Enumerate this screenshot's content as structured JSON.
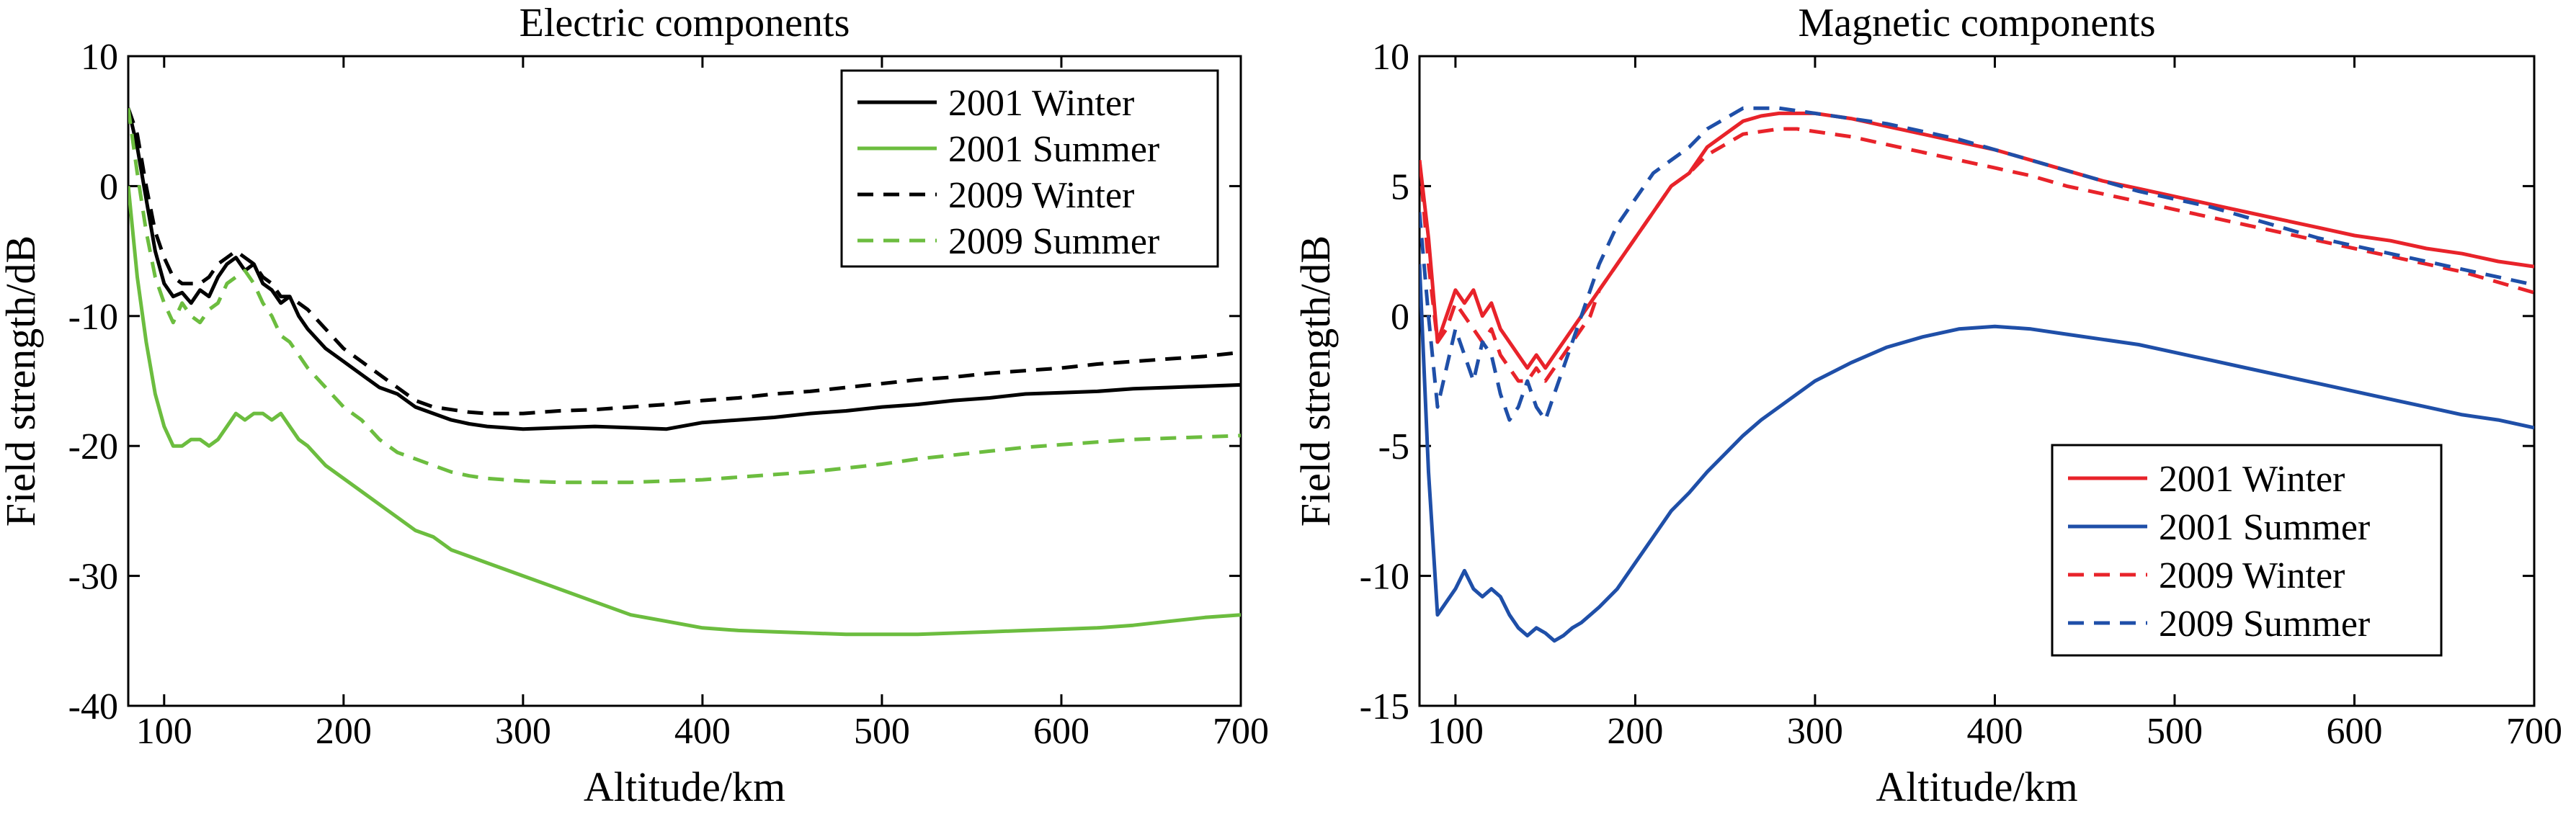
{
  "chart_data": [
    {
      "type": "line",
      "title": "Electric components",
      "xlabel": "Altitude/km",
      "ylabel": "Field strength/dB",
      "xlim": [
        80,
        700
      ],
      "ylim": [
        -40,
        10
      ],
      "xticks": [
        100,
        200,
        300,
        400,
        500,
        600,
        700
      ],
      "yticks": [
        10,
        0,
        -10,
        -20,
        -30,
        -40
      ],
      "legend_position": "top-right",
      "series": [
        {
          "name": "2001 Winter",
          "color": "#000000",
          "dash": "solid",
          "x": [
            80,
            85,
            90,
            95,
            100,
            105,
            110,
            115,
            120,
            125,
            130,
            135,
            140,
            145,
            150,
            155,
            160,
            165,
            170,
            175,
            180,
            190,
            200,
            210,
            220,
            230,
            240,
            250,
            260,
            270,
            280,
            290,
            300,
            320,
            340,
            360,
            380,
            400,
            420,
            440,
            460,
            480,
            500,
            520,
            540,
            560,
            580,
            600,
            620,
            640,
            660,
            680,
            700
          ],
          "y": [
            6,
            3,
            -1,
            -5,
            -7.5,
            -8.5,
            -8.2,
            -9,
            -8,
            -8.5,
            -7,
            -6,
            -5.5,
            -6.5,
            -6,
            -7.5,
            -8,
            -9,
            -8.5,
            -10,
            -11,
            -12.5,
            -13.5,
            -14.5,
            -15.5,
            -16,
            -17,
            -17.5,
            -18,
            -18.3,
            -18.5,
            -18.6,
            -18.7,
            -18.6,
            -18.5,
            -18.6,
            -18.7,
            -18.2,
            -18,
            -17.8,
            -17.5,
            -17.3,
            -17,
            -16.8,
            -16.5,
            -16.3,
            -16,
            -15.9,
            -15.8,
            -15.6,
            -15.5,
            -15.4,
            -15.3
          ]
        },
        {
          "name": "2001 Summer",
          "color": "#6cbd3f",
          "dash": "solid",
          "x": [
            80,
            85,
            90,
            95,
            100,
            105,
            110,
            115,
            120,
            125,
            130,
            135,
            140,
            145,
            150,
            155,
            160,
            165,
            170,
            175,
            180,
            190,
            200,
            210,
            220,
            230,
            240,
            250,
            260,
            270,
            280,
            290,
            300,
            320,
            340,
            360,
            380,
            400,
            420,
            440,
            460,
            480,
            500,
            520,
            540,
            560,
            580,
            600,
            620,
            640,
            660,
            680,
            700
          ],
          "y": [
            0,
            -7,
            -12,
            -16,
            -18.5,
            -20,
            -20,
            -19.5,
            -19.5,
            -20,
            -19.5,
            -18.5,
            -17.5,
            -18,
            -17.5,
            -17.5,
            -18,
            -17.5,
            -18.5,
            -19.5,
            -20,
            -21.5,
            -22.5,
            -23.5,
            -24.5,
            -25.5,
            -26.5,
            -27,
            -28,
            -28.5,
            -29,
            -29.5,
            -30,
            -31,
            -32,
            -33,
            -33.5,
            -34,
            -34.2,
            -34.3,
            -34.4,
            -34.5,
            -34.5,
            -34.5,
            -34.4,
            -34.3,
            -34.2,
            -34.1,
            -34,
            -33.8,
            -33.5,
            -33.2,
            -33
          ]
        },
        {
          "name": "2009 Winter",
          "color": "#000000",
          "dash": "dashed",
          "x": [
            80,
            85,
            90,
            95,
            100,
            105,
            110,
            115,
            120,
            125,
            130,
            135,
            140,
            145,
            150,
            155,
            160,
            165,
            170,
            175,
            180,
            190,
            200,
            210,
            220,
            230,
            240,
            250,
            260,
            270,
            280,
            290,
            300,
            320,
            340,
            360,
            380,
            400,
            420,
            440,
            460,
            480,
            500,
            520,
            540,
            560,
            580,
            600,
            620,
            640,
            660,
            680,
            700
          ],
          "y": [
            6,
            4,
            0,
            -3.5,
            -5.5,
            -7,
            -7.5,
            -7.5,
            -7.5,
            -7,
            -6,
            -5.5,
            -5,
            -5.5,
            -6,
            -7,
            -7.5,
            -8.5,
            -8.5,
            -9,
            -9.5,
            -11,
            -12.5,
            -13.5,
            -14.5,
            -15.5,
            -16.5,
            -17,
            -17.2,
            -17.4,
            -17.5,
            -17.5,
            -17.5,
            -17.3,
            -17.2,
            -17,
            -16.8,
            -16.5,
            -16.3,
            -16,
            -15.8,
            -15.5,
            -15.2,
            -14.9,
            -14.7,
            -14.4,
            -14.2,
            -14,
            -13.7,
            -13.5,
            -13.3,
            -13.1,
            -12.8
          ]
        },
        {
          "name": "2009 Summer",
          "color": "#6cbd3f",
          "dash": "dashed",
          "x": [
            80,
            85,
            90,
            95,
            100,
            105,
            110,
            115,
            120,
            125,
            130,
            135,
            140,
            145,
            150,
            155,
            160,
            165,
            170,
            175,
            180,
            190,
            200,
            210,
            220,
            230,
            240,
            250,
            260,
            270,
            280,
            290,
            300,
            320,
            340,
            360,
            380,
            400,
            420,
            440,
            460,
            480,
            500,
            520,
            540,
            560,
            580,
            600,
            620,
            640,
            660,
            680,
            700
          ],
          "y": [
            6,
            1,
            -3.5,
            -7,
            -9,
            -10.5,
            -9,
            -10,
            -10.5,
            -9.5,
            -9,
            -7.5,
            -7,
            -6.5,
            -7.5,
            -9,
            -10,
            -11.5,
            -12,
            -13,
            -14,
            -15.5,
            -17,
            -18,
            -19.5,
            -20.5,
            -21,
            -21.5,
            -22,
            -22.3,
            -22.5,
            -22.6,
            -22.7,
            -22.8,
            -22.8,
            -22.8,
            -22.7,
            -22.6,
            -22.4,
            -22.2,
            -22,
            -21.7,
            -21.4,
            -21,
            -20.7,
            -20.4,
            -20.1,
            -19.9,
            -19.7,
            -19.5,
            -19.4,
            -19.3,
            -19.2
          ]
        }
      ]
    },
    {
      "type": "line",
      "title": "Magnetic components",
      "xlabel": "Altitude/km",
      "ylabel": "Field strength/dB",
      "xlim": [
        80,
        700
      ],
      "ylim": [
        -15,
        10
      ],
      "xticks": [
        100,
        200,
        300,
        400,
        500,
        600,
        700
      ],
      "yticks": [
        10,
        5,
        0,
        -5,
        -10,
        -15
      ],
      "legend_position": "bottom-right",
      "series": [
        {
          "name": "2001 Winter",
          "color": "#e8232a",
          "dash": "solid",
          "x": [
            80,
            85,
            90,
            95,
            100,
            105,
            110,
            115,
            120,
            125,
            130,
            135,
            140,
            145,
            150,
            155,
            160,
            165,
            170,
            175,
            180,
            190,
            200,
            210,
            220,
            230,
            240,
            250,
            260,
            270,
            280,
            290,
            300,
            320,
            340,
            360,
            380,
            400,
            420,
            440,
            460,
            480,
            500,
            520,
            540,
            560,
            580,
            600,
            620,
            640,
            660,
            680,
            700
          ],
          "y": [
            6,
            3,
            -1,
            0,
            1,
            0.5,
            1,
            0,
            0.5,
            -0.5,
            -1,
            -1.5,
            -2,
            -1.5,
            -2,
            -1.5,
            -1,
            -0.5,
            0,
            0.5,
            1,
            2,
            3,
            4,
            5,
            5.5,
            6.5,
            7,
            7.5,
            7.7,
            7.8,
            7.8,
            7.8,
            7.6,
            7.3,
            7,
            6.7,
            6.4,
            6,
            5.6,
            5.2,
            4.9,
            4.6,
            4.3,
            4,
            3.7,
            3.4,
            3.1,
            2.9,
            2.6,
            2.4,
            2.1,
            1.9
          ]
        },
        {
          "name": "2001 Summer",
          "color": "#1f4fa8",
          "dash": "solid",
          "x": [
            80,
            85,
            90,
            95,
            100,
            105,
            110,
            115,
            120,
            125,
            130,
            135,
            140,
            145,
            150,
            155,
            160,
            165,
            170,
            175,
            180,
            190,
            200,
            210,
            220,
            230,
            240,
            250,
            260,
            270,
            280,
            290,
            300,
            320,
            340,
            360,
            380,
            400,
            420,
            440,
            460,
            480,
            500,
            520,
            540,
            560,
            580,
            600,
            620,
            640,
            660,
            680,
            700
          ],
          "y": [
            2,
            -6,
            -11.5,
            -11,
            -10.5,
            -9.8,
            -10.5,
            -10.8,
            -10.5,
            -10.8,
            -11.5,
            -12,
            -12.3,
            -12,
            -12.2,
            -12.5,
            -12.3,
            -12,
            -11.8,
            -11.5,
            -11.2,
            -10.5,
            -9.5,
            -8.5,
            -7.5,
            -6.8,
            -6,
            -5.3,
            -4.6,
            -4,
            -3.5,
            -3,
            -2.5,
            -1.8,
            -1.2,
            -0.8,
            -0.5,
            -0.4,
            -0.5,
            -0.7,
            -0.9,
            -1.1,
            -1.4,
            -1.7,
            -2,
            -2.3,
            -2.6,
            -2.9,
            -3.2,
            -3.5,
            -3.8,
            -4,
            -4.3
          ]
        },
        {
          "name": "2009 Winter",
          "color": "#e8232a",
          "dash": "dashed",
          "x": [
            80,
            85,
            90,
            95,
            100,
            105,
            110,
            115,
            120,
            125,
            130,
            135,
            140,
            145,
            150,
            155,
            160,
            165,
            170,
            175,
            180,
            190,
            200,
            210,
            220,
            230,
            240,
            250,
            260,
            270,
            280,
            290,
            300,
            320,
            340,
            360,
            380,
            400,
            420,
            440,
            460,
            480,
            500,
            520,
            540,
            560,
            580,
            600,
            620,
            640,
            660,
            680,
            700
          ],
          "y": [
            6,
            2,
            -1,
            -0.5,
            0.5,
            0,
            -0.5,
            -1,
            -0.5,
            -1.5,
            -2,
            -2.5,
            -2.5,
            -2,
            -2.5,
            -2,
            -1.5,
            -1,
            -0.5,
            0,
            1,
            2,
            3,
            4,
            5,
            5.5,
            6.2,
            6.6,
            7,
            7.1,
            7.2,
            7.2,
            7.1,
            6.9,
            6.6,
            6.3,
            6,
            5.7,
            5.4,
            5,
            4.7,
            4.4,
            4.1,
            3.8,
            3.5,
            3.2,
            2.9,
            2.6,
            2.3,
            2,
            1.7,
            1.3,
            0.9
          ]
        },
        {
          "name": "2009 Summer",
          "color": "#1f4fa8",
          "dash": "dashed",
          "x": [
            80,
            85,
            90,
            95,
            100,
            105,
            110,
            115,
            120,
            125,
            130,
            135,
            140,
            145,
            150,
            155,
            160,
            165,
            170,
            175,
            180,
            190,
            200,
            210,
            220,
            230,
            240,
            250,
            260,
            270,
            280,
            290,
            300,
            320,
            340,
            360,
            380,
            400,
            420,
            440,
            460,
            480,
            500,
            520,
            540,
            560,
            580,
            600,
            620,
            640,
            660,
            680,
            700
          ],
          "y": [
            4,
            0,
            -3.5,
            -2,
            -0.5,
            -1.5,
            -2.5,
            -1,
            -1.5,
            -3,
            -4,
            -3.5,
            -2.5,
            -3.5,
            -4,
            -3,
            -2,
            -1,
            0,
            1,
            2,
            3.5,
            4.5,
            5.5,
            6,
            6.5,
            7.2,
            7.6,
            8,
            8,
            8,
            7.9,
            7.8,
            7.6,
            7.4,
            7.1,
            6.8,
            6.4,
            6,
            5.6,
            5.2,
            4.8,
            4.5,
            4.2,
            3.8,
            3.4,
            3,
            2.7,
            2.4,
            2.1,
            1.8,
            1.5,
            1.2
          ]
        }
      ]
    }
  ]
}
